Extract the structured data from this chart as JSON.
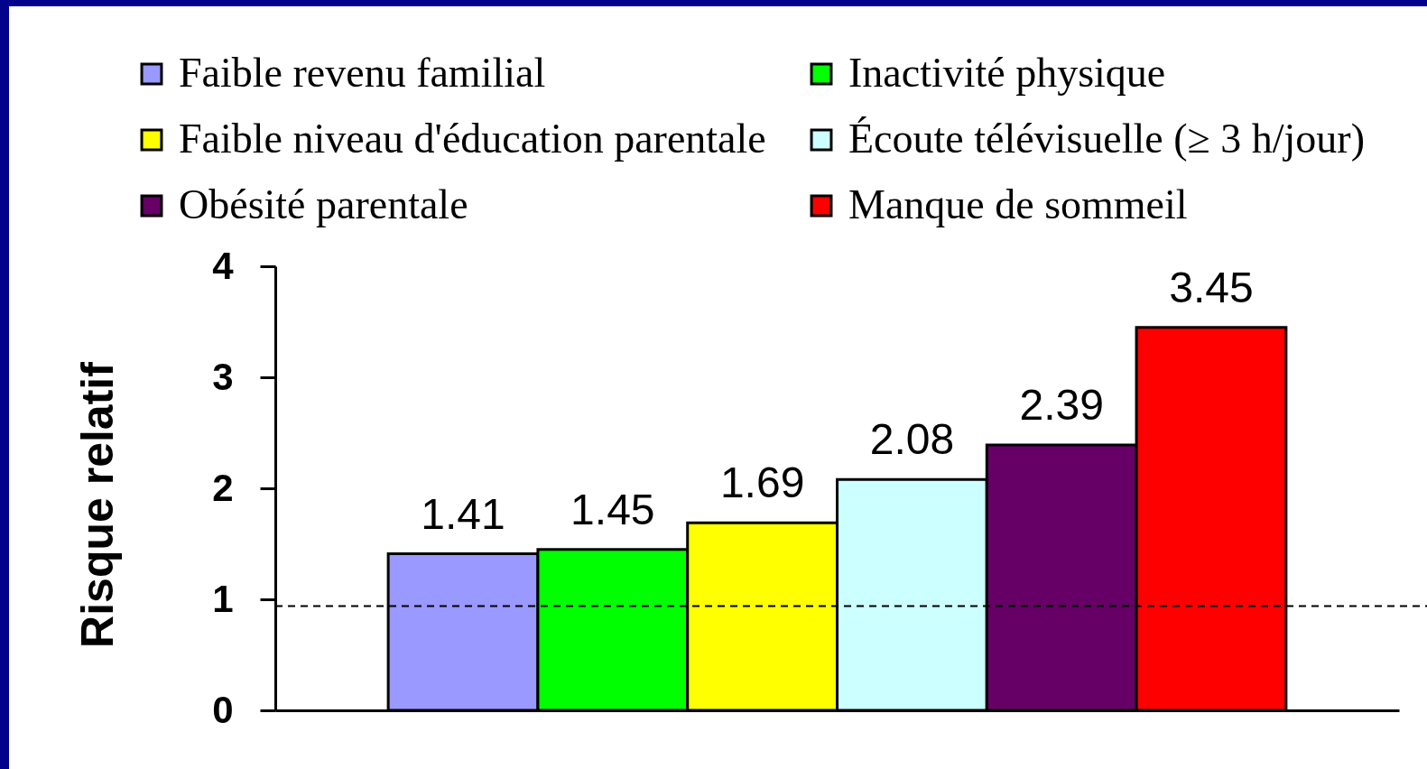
{
  "chart_data": {
    "type": "bar",
    "categories": [
      null
    ],
    "series": [
      {
        "name": "Faible revenu familial",
        "color": "#9999ff",
        "values": [
          1.41
        ]
      },
      {
        "name": "Inactivité physique",
        "color": "#00ff00",
        "values": [
          1.45
        ]
      },
      {
        "name": "Faible niveau d'éducation parentale",
        "color": "#ffff00",
        "values": [
          1.69
        ]
      },
      {
        "name": "Écoute télévisuelle (≥ 3 h/jour)",
        "color": "#ccffff",
        "values": [
          2.08
        ]
      },
      {
        "name": "Obésité parentale",
        "color": "#660066",
        "values": [
          2.39
        ]
      },
      {
        "name": "Manque de sommeil",
        "color": "#ff0000",
        "values": [
          3.45
        ]
      }
    ],
    "ylabel": "Risque relatif",
    "ylim": [
      0,
      4
    ],
    "yticks": [
      0,
      1,
      2,
      3,
      4
    ],
    "data_labels": true,
    "legend": "top",
    "ref_lines": [
      {
        "axis": "y",
        "value": 0.94,
        "color": "#000000",
        "line_style": "dashed"
      }
    ]
  }
}
